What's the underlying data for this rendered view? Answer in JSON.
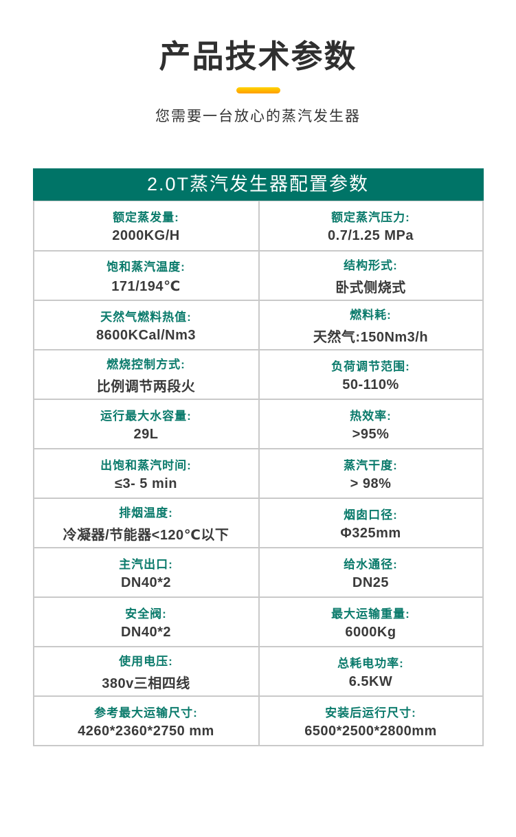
{
  "page": {
    "title": "产品技术参数",
    "subtitle": "您需要一台放心的蒸汽发生器"
  },
  "colors": {
    "header_bg": "#007467",
    "label": "#0a7a6b",
    "value": "#3a3a3a",
    "border": "#c9c9c9",
    "accent_top": "#ffd400",
    "accent_bottom": "#ff9d00",
    "title_text": "#2f2f2f"
  },
  "table": {
    "header": "2.0T蒸汽发生器配置参数",
    "rows": [
      {
        "left": {
          "label": "额定蒸发量:",
          "value": "2000KG/H"
        },
        "right": {
          "label": "额定蒸汽压力:",
          "value": "0.7/1.25 MPa"
        }
      },
      {
        "left": {
          "label": "饱和蒸汽温度:",
          "value": "171/194℃"
        },
        "right": {
          "label": "结构形式:",
          "value": "卧式侧烧式"
        }
      },
      {
        "left": {
          "label": "天然气燃料热值:",
          "value": "8600KCal/Nm3"
        },
        "right": {
          "label": "燃料耗:",
          "value": "天然气:150Nm3/h"
        }
      },
      {
        "left": {
          "label": "燃烧控制方式:",
          "value": "比例调节两段火"
        },
        "right": {
          "label": "负荷调节范围:",
          "value": "50-110%"
        }
      },
      {
        "left": {
          "label": "运行最大水容量:",
          "value": "29L"
        },
        "right": {
          "label": "热效率:",
          "value": ">95%"
        }
      },
      {
        "left": {
          "label": "出饱和蒸汽时间:",
          "value": "≤3- 5 min"
        },
        "right": {
          "label": "蒸汽干度:",
          "value": "> 98%"
        }
      },
      {
        "left": {
          "label": "排烟温度:",
          "value": "冷凝器/节能器<120℃以下"
        },
        "right": {
          "label": "烟囱口径:",
          "value": "Φ325mm"
        }
      },
      {
        "left": {
          "label": "主汽出口:",
          "value": "DN40*2"
        },
        "right": {
          "label": "给水通径:",
          "value": "DN25"
        }
      },
      {
        "left": {
          "label": "安全阀:",
          "value": "DN40*2"
        },
        "right": {
          "label": "最大运输重量:",
          "value": "6000Kg"
        }
      },
      {
        "left": {
          "label": "使用电压:",
          "value": "380v三相四线"
        },
        "right": {
          "label": "总耗电功率:",
          "value": "6.5KW"
        }
      },
      {
        "left": {
          "label": "参考最大运输尺寸:",
          "value": "4260*2360*2750 mm"
        },
        "right": {
          "label": "安装后运行尺寸:",
          "value": "6500*2500*2800mm"
        }
      }
    ]
  }
}
